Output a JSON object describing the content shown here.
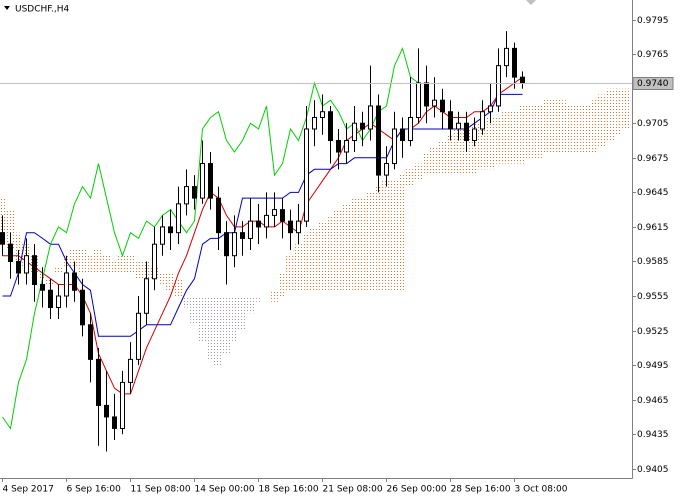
{
  "chart_data": {
    "type": "candlestick",
    "title": "USDCHF.,H4",
    "categories": [
      "4 Sep 2017",
      null,
      null,
      null,
      null,
      null,
      null,
      null,
      "6 Sep 16:00",
      null,
      null,
      null,
      null,
      null,
      null,
      null,
      "11 Sep 08:00",
      null,
      null,
      null,
      null,
      null,
      null,
      null,
      "14 Sep 00:00",
      null,
      null,
      null,
      null,
      null,
      null,
      null,
      "18 Sep 16:00",
      null,
      null,
      null,
      null,
      null,
      null,
      null,
      "21 Sep 08:00",
      null,
      null,
      null,
      null,
      null,
      null,
      null,
      "26 Sep 00:00",
      null,
      null,
      null,
      null,
      null,
      null,
      null,
      "28 Sep 16:00",
      null,
      null,
      null,
      null,
      null,
      null,
      null,
      "3 Oct 08:00",
      null,
      null,
      null,
      null,
      null,
      null,
      null,
      null,
      null,
      null,
      null,
      null,
      null,
      null
    ],
    "open": [
      0.961,
      0.96,
      0.9585,
      0.9575,
      0.959,
      0.9565,
      0.956,
      0.9545,
      0.9555,
      0.9575,
      0.956,
      0.953,
      0.95,
      0.946,
      0.945,
      0.944,
      0.948,
      0.95,
      0.954,
      0.957,
      0.96,
      0.9615,
      0.961,
      0.9635,
      0.965,
      0.964,
      0.967,
      0.964,
      0.961,
      0.959,
      0.961,
      0.9605,
      0.962,
      0.9615,
      0.9625,
      0.963,
      0.962,
      0.961,
      0.962,
      0.97,
      0.971,
      0.9715,
      0.969,
      0.968,
      0.969,
      0.9705,
      0.97,
      0.972,
      0.966,
      0.967,
      0.97,
      0.969,
      0.971,
      0.974,
      0.972,
      0.9725,
      0.9715,
      0.97,
      0.9705,
      0.969,
      0.97,
      0.9715,
      0.972,
      0.9755,
      0.977,
      0.9745,
      null,
      null,
      null,
      null,
      null,
      null,
      null,
      null,
      null,
      null,
      null,
      null,
      null
    ],
    "high": [
      0.9625,
      0.961,
      0.9595,
      0.9605,
      0.96,
      0.958,
      0.957,
      0.9565,
      0.959,
      0.9585,
      0.957,
      0.954,
      0.951,
      0.949,
      0.947,
      0.949,
      0.9515,
      0.9555,
      0.9585,
      0.9615,
      0.9625,
      0.963,
      0.965,
      0.9665,
      0.966,
      0.969,
      0.968,
      0.965,
      0.962,
      0.9625,
      0.962,
      0.964,
      0.9635,
      0.9645,
      0.9645,
      0.964,
      0.963,
      0.9635,
      0.972,
      0.9725,
      0.973,
      0.972,
      0.97,
      0.9705,
      0.972,
      0.9715,
      0.9755,
      0.973,
      0.9685,
      0.9715,
      0.971,
      0.9745,
      0.977,
      0.9755,
      0.9745,
      0.9735,
      0.9725,
      0.9715,
      0.9715,
      0.971,
      0.9725,
      0.974,
      0.977,
      0.9785,
      0.9775,
      0.975,
      null,
      null,
      null,
      null,
      null,
      null,
      null,
      null,
      null,
      null,
      null,
      null,
      null
    ],
    "low": [
      0.959,
      0.957,
      0.9565,
      0.9565,
      0.955,
      0.9545,
      0.9535,
      0.9535,
      0.9545,
      0.955,
      0.952,
      0.948,
      0.9425,
      0.942,
      0.943,
      0.9435,
      0.947,
      0.9495,
      0.953,
      0.956,
      0.959,
      0.9595,
      0.96,
      0.9625,
      0.963,
      0.9635,
      0.963,
      0.9595,
      0.9565,
      0.958,
      0.959,
      0.9595,
      0.96,
      0.9605,
      0.9615,
      0.9605,
      0.9595,
      0.96,
      0.9615,
      0.9685,
      0.9695,
      0.967,
      0.9665,
      0.967,
      0.968,
      0.9685,
      0.969,
      0.9645,
      0.965,
      0.9665,
      0.9675,
      0.9685,
      0.9705,
      0.9705,
      0.971,
      0.97,
      0.969,
      0.969,
      0.968,
      0.9685,
      0.9695,
      0.9705,
      0.9715,
      0.9745,
      0.9735,
      0.9735,
      null,
      null,
      null,
      null,
      null,
      null,
      null,
      null,
      null,
      null,
      null,
      null,
      null
    ],
    "close": [
      0.96,
      0.9585,
      0.9575,
      0.959,
      0.9565,
      0.956,
      0.9545,
      0.9555,
      0.9575,
      0.956,
      0.953,
      0.95,
      0.946,
      0.945,
      0.944,
      0.948,
      0.95,
      0.954,
      0.957,
      0.96,
      0.9615,
      0.961,
      0.9635,
      0.965,
      0.964,
      0.967,
      0.964,
      0.961,
      0.959,
      0.961,
      0.9605,
      0.962,
      0.9615,
      0.9625,
      0.963,
      0.962,
      0.961,
      0.962,
      0.97,
      0.971,
      0.9715,
      0.969,
      0.968,
      0.969,
      0.9705,
      0.97,
      0.972,
      0.966,
      0.967,
      0.97,
      0.969,
      0.971,
      0.974,
      0.972,
      0.9725,
      0.9715,
      0.97,
      0.9705,
      0.969,
      0.97,
      0.9715,
      0.972,
      0.9755,
      0.977,
      0.9745,
      0.974,
      null,
      null,
      null,
      null,
      null,
      null,
      null,
      null,
      null,
      null,
      null,
      null,
      null
    ],
    "up_color": "#ffffff",
    "down_color": "#000000",
    "wick_color": "#000000",
    "lines": [
      {
        "color": "#d00000",
        "values": [
          0.959,
          0.959,
          0.959,
          0.9585,
          0.958,
          0.9575,
          0.957,
          0.9565,
          0.9565,
          0.9565,
          0.9555,
          0.954,
          0.9505,
          0.949,
          0.9475,
          0.947,
          0.947,
          0.949,
          0.951,
          0.9525,
          0.954,
          0.9555,
          0.9575,
          0.959,
          0.961,
          0.963,
          0.9645,
          0.964,
          0.9625,
          0.9615,
          0.9615,
          0.962,
          0.962,
          0.9615,
          0.9615,
          0.962,
          0.9615,
          0.961,
          0.9635,
          0.9645,
          0.9655,
          0.9665,
          0.9675,
          0.969,
          0.9695,
          0.97,
          0.9705,
          0.97,
          0.9695,
          0.969,
          0.97,
          0.97,
          0.9705,
          0.9715,
          0.972,
          0.9715,
          0.971,
          0.971,
          0.971,
          0.9715,
          0.9715,
          0.972,
          0.973,
          0.9735,
          0.974,
          0.9745,
          null,
          null,
          null,
          null,
          null,
          null,
          null,
          null,
          null,
          null,
          null,
          null,
          null
        ]
      },
      {
        "color": "#0000c0",
        "values": [
          0.9555,
          0.9555,
          0.9575,
          0.961,
          0.961,
          0.9605,
          0.96,
          0.96,
          0.9585,
          0.9575,
          0.9565,
          0.956,
          0.952,
          0.952,
          0.952,
          0.952,
          0.952,
          0.9525,
          0.953,
          0.953,
          0.953,
          0.953,
          0.9545,
          0.956,
          0.957,
          0.96,
          0.9605,
          0.9605,
          0.961,
          0.961,
          0.964,
          0.964,
          0.964,
          0.964,
          0.964,
          0.964,
          0.9645,
          0.9645,
          0.966,
          0.9665,
          0.9665,
          0.9665,
          0.967,
          0.967,
          0.9675,
          0.9675,
          0.9675,
          0.9675,
          0.9675,
          0.969,
          0.97,
          0.97,
          0.97,
          0.97,
          0.97,
          0.97,
          0.97,
          0.97,
          0.97,
          0.9705,
          0.971,
          0.9715,
          0.973,
          0.973,
          0.973,
          0.973,
          null,
          null,
          null,
          null,
          null,
          null,
          null,
          null,
          null,
          null,
          null,
          null,
          null
        ]
      },
      {
        "color": "#00d000",
        "values": [
          0.945,
          0.944,
          0.948,
          0.95,
          0.954,
          0.957,
          0.96,
          0.9615,
          0.961,
          0.9635,
          0.965,
          0.964,
          0.967,
          0.964,
          0.961,
          0.959,
          0.961,
          0.9605,
          0.962,
          0.9615,
          0.9625,
          0.963,
          0.962,
          0.961,
          0.962,
          0.97,
          0.971,
          0.9715,
          0.969,
          0.968,
          0.969,
          0.9705,
          0.97,
          0.972,
          0.966,
          0.967,
          0.97,
          0.969,
          0.971,
          0.974,
          0.972,
          0.9725,
          0.9715,
          0.97,
          0.9705,
          0.969,
          0.97,
          0.9715,
          0.972,
          0.9755,
          0.977,
          0.9745,
          0.974,
          null,
          null,
          null,
          null,
          null,
          null,
          null,
          null,
          null,
          null,
          null,
          null,
          null,
          null,
          null,
          null,
          null,
          null,
          null,
          null,
          null,
          null,
          null,
          null,
          null
        ]
      }
    ],
    "cloud": {
      "up_color": "#e07830",
      "down_color": "#a098c8",
      "span_a": [
        0.964,
        0.963,
        0.961,
        0.96,
        0.959,
        0.9575,
        0.957,
        0.958,
        0.959,
        0.9595,
        0.9595,
        0.959,
        0.9595,
        0.959,
        0.9585,
        0.959,
        0.959,
        0.9585,
        0.9585,
        0.958,
        0.9575,
        0.9575,
        0.957,
        0.9545,
        0.953,
        0.9515,
        0.95,
        0.9495,
        0.9505,
        0.9515,
        0.9525,
        0.954,
        0.955,
        0.9555,
        0.956,
        0.9575,
        0.959,
        0.96,
        0.961,
        0.9615,
        0.962,
        0.9625,
        0.963,
        0.9635,
        0.964,
        0.964,
        0.9645,
        0.965,
        0.9655,
        0.9655,
        0.966,
        0.9665,
        0.967,
        0.968,
        0.9685,
        0.969,
        0.9695,
        0.97,
        0.97,
        0.9705,
        0.9705,
        0.971,
        0.971,
        0.9715,
        0.9715,
        0.972,
        0.972,
        0.972,
        0.9725,
        0.9725,
        0.9725,
        0.972,
        0.972,
        0.972,
        0.9725,
        0.973,
        0.9735,
        0.9735,
        0.9735
      ],
      "span_b": [
        0.96,
        0.9595,
        0.9585,
        0.958,
        0.9575,
        0.957,
        0.9565,
        0.9575,
        0.958,
        0.958,
        0.9575,
        0.9575,
        0.9575,
        0.9575,
        0.9575,
        0.9575,
        0.9575,
        0.957,
        0.957,
        0.957,
        0.9565,
        0.956,
        0.9555,
        0.9555,
        0.9555,
        0.9555,
        0.9555,
        0.9555,
        0.9555,
        0.9555,
        0.9555,
        0.9555,
        0.9555,
        0.9555,
        0.955,
        0.9555,
        0.956,
        0.956,
        0.956,
        0.956,
        0.956,
        0.956,
        0.956,
        0.956,
        0.956,
        0.956,
        0.956,
        0.956,
        0.956,
        0.956,
        0.956,
        0.965,
        0.9655,
        0.966,
        0.966,
        0.966,
        0.966,
        0.966,
        0.966,
        0.966,
        0.9665,
        0.9665,
        0.967,
        0.967,
        0.967,
        0.967,
        0.9675,
        0.9675,
        0.968,
        0.968,
        0.968,
        0.968,
        0.968,
        0.968,
        0.968,
        0.9685,
        0.969,
        0.9695,
        0.97
      ]
    },
    "current_price": {
      "value": 0.974,
      "label": "0.9740"
    },
    "ylim": [
      0.9397,
      0.9812
    ],
    "yticks": [
      0.9405,
      0.9435,
      0.9465,
      0.9495,
      0.9525,
      0.9555,
      0.9585,
      0.9615,
      0.9645,
      0.9675,
      0.9705,
      0.9765,
      0.9795
    ]
  }
}
